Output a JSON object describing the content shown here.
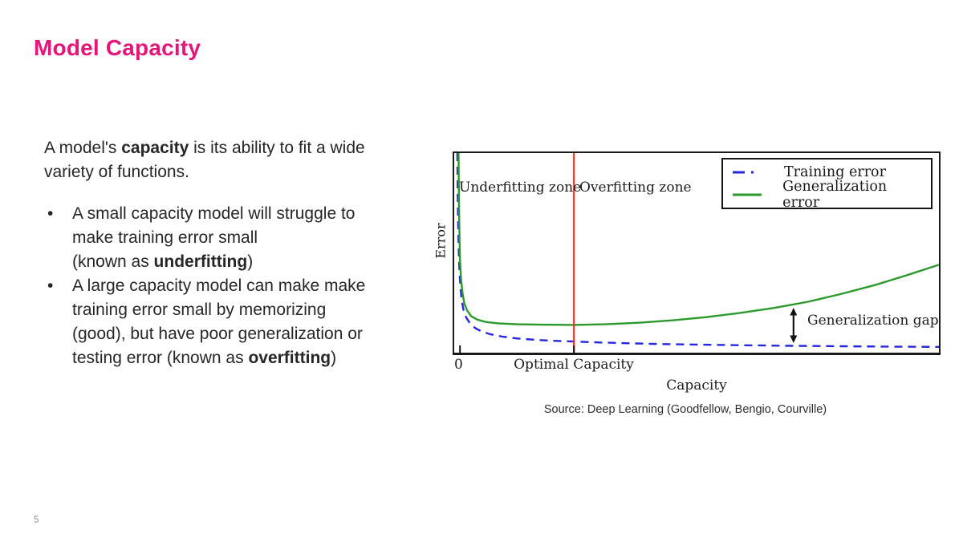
{
  "slide": {
    "title": "Model Capacity",
    "accent_color": "#e61578",
    "page_number": "5"
  },
  "body": {
    "intro": {
      "l1_pre": "A model's ",
      "l1_bold": "capacity",
      "l1_post": " is its ability to fit a wide",
      "l2": "variety of functions."
    },
    "bullets": [
      {
        "l1": "A small capacity model will struggle to",
        "l2": "make training error small",
        "l3_pre": "(known as ",
        "l3_bold": "underfitting",
        "l3_post": ")"
      },
      {
        "l1": "A large capacity model can make make",
        "l2": "training error small by memorizing",
        "l3": "(good), but have poor generalization or",
        "l4_pre": "testing error (known as ",
        "l4_bold": "overfitting",
        "l4_post": ")"
      }
    ]
  },
  "figure": {
    "source": "Source: Deep Learning (Goodfellow, Bengio, Courville)"
  },
  "chart_data": {
    "type": "line",
    "title": "",
    "xlabel": "Capacity",
    "ylabel": "Error",
    "x_tick_labels": [
      "0",
      "Optimal Capacity"
    ],
    "zones": {
      "underfitting": "Underfitting zone",
      "overfitting": "Overfitting zone"
    },
    "grid": false,
    "legend_position": "top-right",
    "axes_note": "no numeric scale shown; points below are normalized 0-1 (x = fraction of capacity axis, y = fraction of error axis height)",
    "optimal_capacity_x": 0.247,
    "optimal_line_color": "#ea3323",
    "axis_ticks_x": [
      0.012,
      0.247
    ],
    "series": [
      {
        "name": "Training error",
        "color": "#2626e0",
        "style": "dashed",
        "dash": "10 7",
        "legend_dash": "15 8 3 99",
        "points": [
          [
            0.0065,
            1.0
          ],
          [
            0.007,
            0.85
          ],
          [
            0.0078,
            0.7
          ],
          [
            0.009,
            0.55
          ],
          [
            0.0105,
            0.43
          ],
          [
            0.0125,
            0.34
          ],
          [
            0.015,
            0.27
          ],
          [
            0.019,
            0.215
          ],
          [
            0.025,
            0.175
          ],
          [
            0.033,
            0.145
          ],
          [
            0.044,
            0.122
          ],
          [
            0.058,
            0.105
          ],
          [
            0.075,
            0.092
          ],
          [
            0.1,
            0.08
          ],
          [
            0.13,
            0.071
          ],
          [
            0.17,
            0.064
          ],
          [
            0.21,
            0.059
          ],
          [
            0.247,
            0.056
          ],
          [
            0.3,
            0.051
          ],
          [
            0.36,
            0.047
          ],
          [
            0.43,
            0.043
          ],
          [
            0.51,
            0.04
          ],
          [
            0.6,
            0.037
          ],
          [
            0.7,
            0.034
          ],
          [
            0.8,
            0.032
          ],
          [
            0.9,
            0.03
          ],
          [
            1.0,
            0.029
          ]
        ]
      },
      {
        "name": "Generalization error",
        "color": "#2b992b",
        "style": "solid",
        "dash": null,
        "legend_dash": null,
        "points": [
          [
            0.009,
            1.0
          ],
          [
            0.0095,
            0.85
          ],
          [
            0.01,
            0.72
          ],
          [
            0.011,
            0.58
          ],
          [
            0.012,
            0.46
          ],
          [
            0.014,
            0.37
          ],
          [
            0.017,
            0.3
          ],
          [
            0.021,
            0.245
          ],
          [
            0.027,
            0.21
          ],
          [
            0.035,
            0.183
          ],
          [
            0.048,
            0.165
          ],
          [
            0.065,
            0.154
          ],
          [
            0.09,
            0.147
          ],
          [
            0.13,
            0.142
          ],
          [
            0.18,
            0.14
          ],
          [
            0.247,
            0.139
          ],
          [
            0.31,
            0.142
          ],
          [
            0.38,
            0.15
          ],
          [
            0.45,
            0.162
          ],
          [
            0.52,
            0.178
          ],
          [
            0.59,
            0.199
          ],
          [
            0.66,
            0.224
          ],
          [
            0.73,
            0.255
          ],
          [
            0.8,
            0.295
          ],
          [
            0.87,
            0.34
          ],
          [
            0.93,
            0.385
          ],
          [
            1.0,
            0.44
          ]
        ]
      }
    ],
    "gap_annotation": {
      "label": "Generalization gap",
      "x": 0.7,
      "y_top": 0.225,
      "y_bottom": 0.048
    }
  }
}
